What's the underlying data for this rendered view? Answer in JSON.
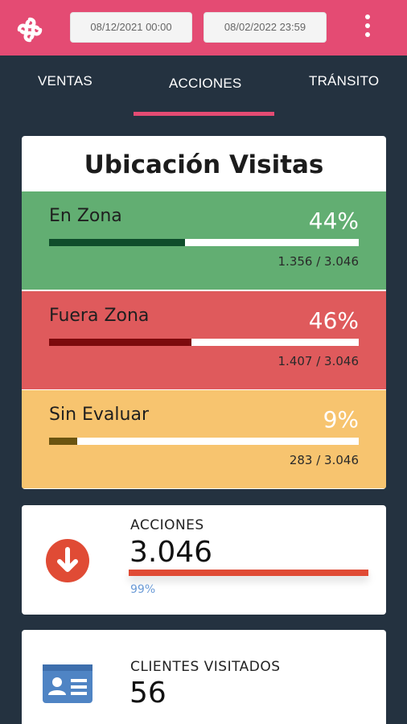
{
  "header": {
    "date_start": "08/12/2021 00:00",
    "date_end": "08/02/2022 23:59",
    "brand_color": "#e44b73"
  },
  "tabs": [
    {
      "label": "VENTAS",
      "active": false
    },
    {
      "label": "ACCIONES",
      "active": true
    },
    {
      "label": "TRÁNSITO",
      "active": false
    }
  ],
  "ubicacion": {
    "title": "Ubicación Visitas",
    "zones": [
      {
        "label": "En Zona",
        "percent_text": "44%",
        "count_text": "1.356 / 3.046",
        "fraction": 0.44,
        "bg_color": "#62ae72",
        "fill_color": "#0f4d2b"
      },
      {
        "label": "Fuera Zona",
        "percent_text": "46%",
        "count_text": "1.407 / 3.046",
        "fraction": 0.46,
        "bg_color": "#df5a5c",
        "fill_color": "#7d0a0d"
      },
      {
        "label": "Sin Evaluar",
        "percent_text": "9%",
        "count_text": "283 / 3.046",
        "fraction": 0.09,
        "bg_color": "#f7c46f",
        "fill_color": "#6b5410"
      }
    ]
  },
  "acciones": {
    "icon": "arrow-down-circle-icon",
    "label": "ACCIONES",
    "value": "3.046",
    "percent": "99%",
    "fraction": 0.99,
    "accent_color": "#e04b35"
  },
  "clientes": {
    "icon": "id-card-icon",
    "label": "CLIENTES VISITADOS",
    "value": "56"
  }
}
